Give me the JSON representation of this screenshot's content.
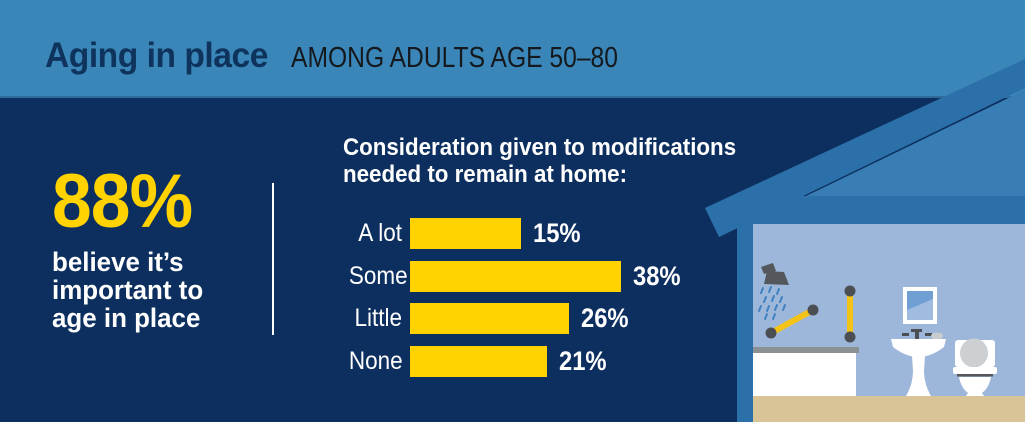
{
  "header": {
    "title": "Aging in place",
    "subtitle": "AMONG ADULTS AGE 50–80"
  },
  "stat": {
    "value": "88%",
    "caption_lines": [
      "believe it’s",
      "important to",
      "age in place"
    ]
  },
  "chart_data": {
    "type": "bar",
    "orientation": "horizontal",
    "title_lines": [
      "Consideration given to modifications",
      "needed to remain at home:"
    ],
    "categories": [
      "A lot",
      "Some",
      "Little",
      "None"
    ],
    "values": [
      15,
      38,
      26,
      21
    ],
    "value_labels": [
      "15%",
      "38%",
      "26%",
      "21%"
    ],
    "unit": "%",
    "bar_color": "#FFD200",
    "text_color": "#FFFFFF",
    "axis": "none",
    "legend": "none",
    "gridlines": false
  },
  "illustration": {
    "description": "cutaway house showing an accessible bathroom",
    "elements": [
      "house-roof",
      "house-gable",
      "house-eave",
      "house-wall",
      "bathroom-wall",
      "floor",
      "bathtub",
      "shower-head",
      "water-spray",
      "grab-bar-diagonal",
      "grab-bar-vertical",
      "mirror",
      "pedestal-sink",
      "faucet",
      "soap",
      "toilet"
    ]
  },
  "colors": {
    "header_bg": "#3A86B8",
    "body_bg": "#0D2F5F",
    "accent_yellow": "#FFD200",
    "grab_bar_yellow": "#F3C318",
    "roof_blue": "#2B70A9",
    "gable_blue": "#387DB4",
    "bathroom_wall_light": "#9DB7DA",
    "floor_tan": "#D8C497",
    "fixture_white": "#FFFFFF",
    "fixture_gray": "#54585C",
    "water_blue": "#3F80C1",
    "title_navy": "#0E335C",
    "subtitle_dark": "#15191D"
  }
}
